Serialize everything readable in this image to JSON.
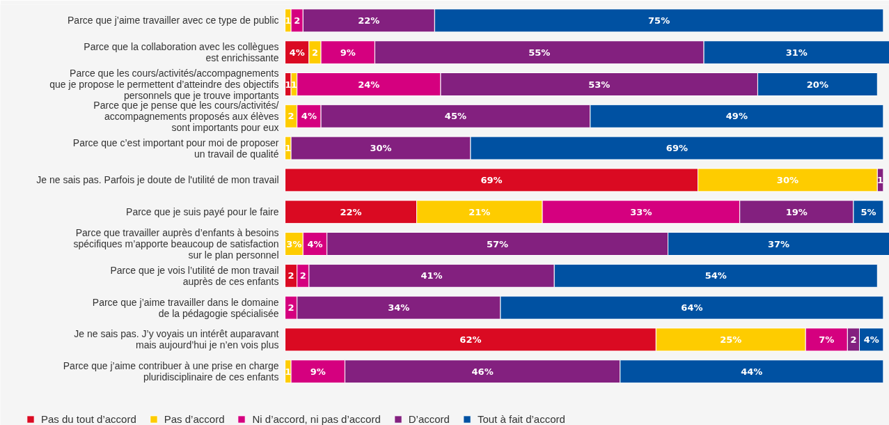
{
  "chart_data": {
    "type": "bar",
    "orientation": "horizontal",
    "stacked": true,
    "tick_labels": "y",
    "legend": "bottom",
    "grid": false,
    "categories": [
      "Parce que j’aime travailler avec ce type de public",
      "Parce que la collaboration avec les collègues\nest enrichissante",
      "Parce que les cours/activités/accompagnements\nque je propose le permettent d’atteindre des objectifs\npersonnels que je trouve importants",
      "Parce que je pense que les cours/activités/\naccompagnements proposés aux élèves\nsont importants pour eux",
      "Parce que c’est important pour moi de proposer\nun travail de qualité",
      "Je ne sais pas. Parfois je doute de l'utilité de mon travail",
      "Parce que je suis payé pour le faire",
      "Parce que travailler auprès d’enfants à besoins\nspécifiques m’apporte beaucoup de satisfaction\nsur le plan personnel",
      "Parce que je vois l’utilité de mon travail\nauprès de ces enfants",
      "Parce que j’aime travailler dans le domaine\nde la pédagogie spécialisée",
      "Je ne sais pas. J’y voyais un intérêt auparavant\nmais aujourd’hui je n’en vois plus",
      "Parce que j’aime contribuer à une prise en charge\npluridisciplinaire de ces enfants"
    ],
    "series": [
      {
        "name": "Pas du tout d’accord",
        "color": "#da0a22",
        "values": [
          null,
          4,
          1,
          null,
          null,
          69,
          22,
          null,
          2,
          null,
          62,
          null
        ],
        "value_labels": [
          null,
          "4%",
          "1",
          null,
          null,
          "69%",
          "22%",
          null,
          "2",
          null,
          "62%",
          null
        ]
      },
      {
        "name": "Pas d’accord",
        "color": "#fecc00",
        "values": [
          1,
          2,
          1,
          2,
          1,
          30,
          21,
          3,
          null,
          null,
          25,
          1
        ],
        "value_labels": [
          "1",
          "2",
          "1",
          "2",
          "1",
          "30%",
          "21%",
          "3%",
          null,
          null,
          "25%",
          "1"
        ]
      },
      {
        "name": "Ni d’accord, ni pas d’accord",
        "color": "#d5007f",
        "values": [
          2,
          9,
          24,
          4,
          null,
          null,
          33,
          4,
          2,
          2,
          7,
          9
        ],
        "value_labels": [
          "2",
          "9%",
          "24%",
          "4%",
          null,
          null,
          "33%",
          "4%",
          "2",
          "2",
          "7%",
          "9%"
        ]
      },
      {
        "name": "D’accord",
        "color": "#83207f",
        "values": [
          22,
          55,
          53,
          45,
          30,
          1,
          19,
          57,
          41,
          34,
          2,
          46
        ],
        "value_labels": [
          "22%",
          "55%",
          "53%",
          "45%",
          "30%",
          "1",
          "19%",
          "57%",
          "41%",
          "34%",
          "2",
          "46%"
        ]
      },
      {
        "name": "Tout à fait d’accord",
        "color": "#0051a2",
        "values": [
          75,
          31,
          20,
          49,
          69,
          null,
          5,
          37,
          54,
          64,
          4,
          44
        ],
        "value_labels": [
          "75%",
          "31%",
          "20%",
          "49%",
          "69%",
          null,
          "5%",
          "37%",
          "54%",
          "64%",
          "4%",
          "44%"
        ]
      }
    ]
  }
}
